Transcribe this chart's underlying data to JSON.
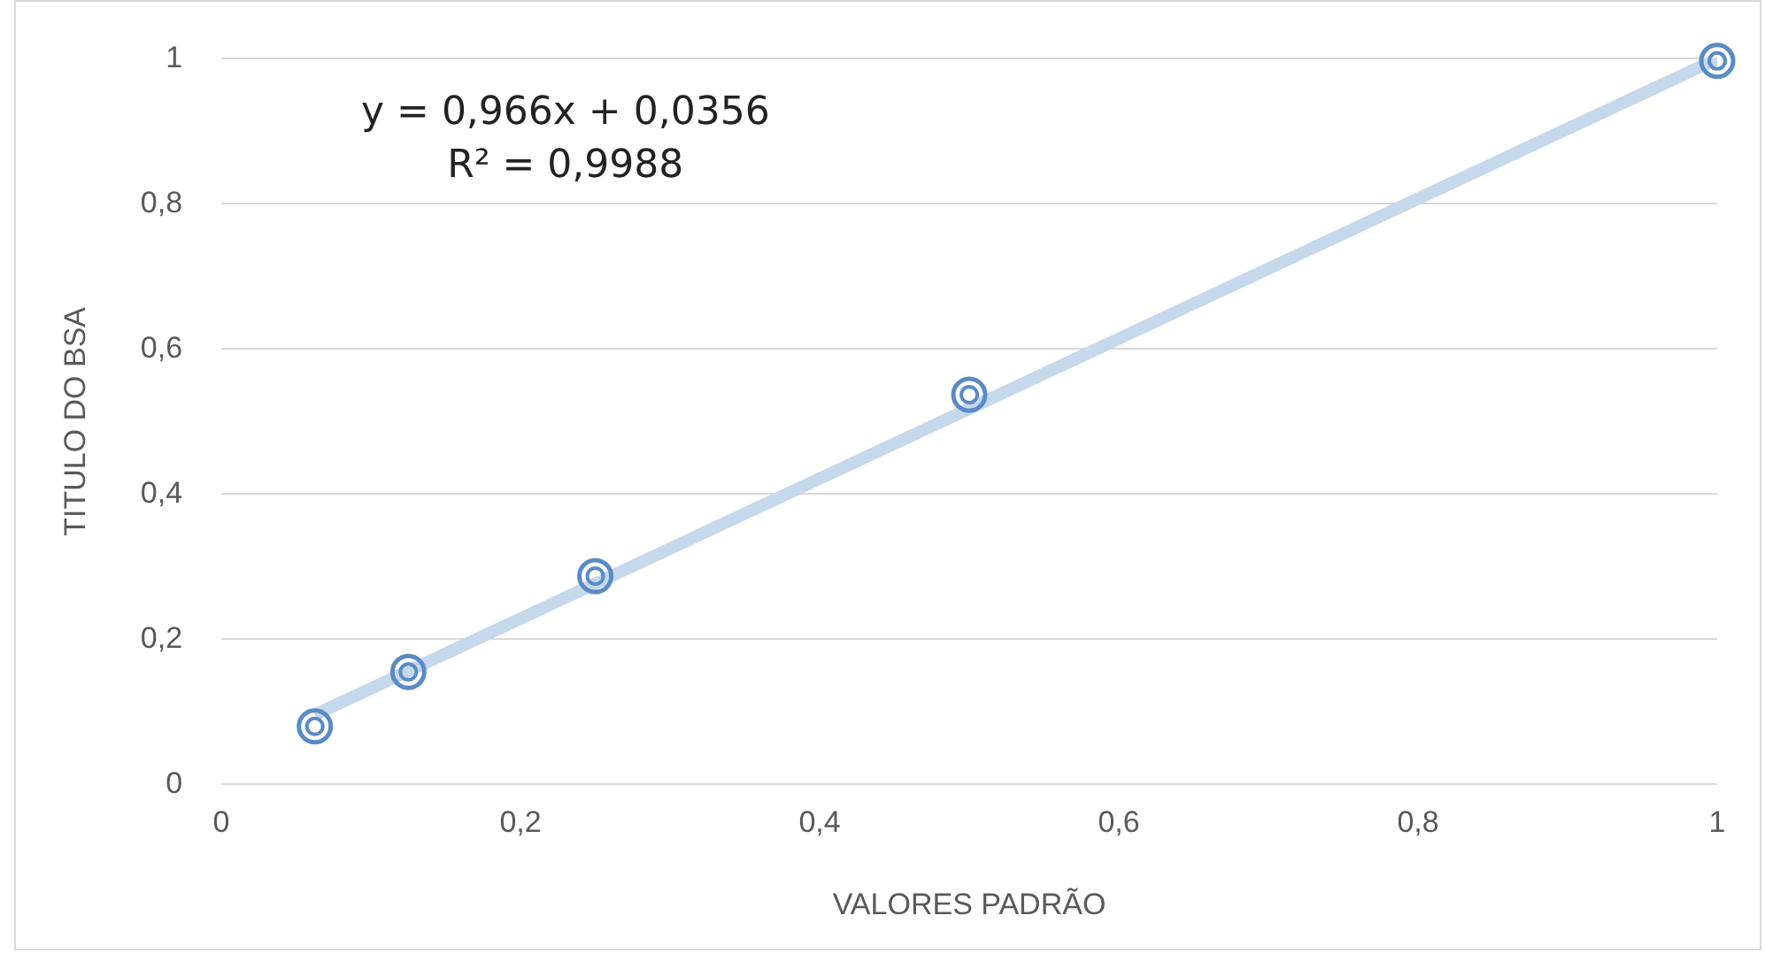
{
  "chart_data": {
    "type": "scatter",
    "xlabel": "VALORES PADRÃO",
    "ylabel": "TITULO DO BSA",
    "xlim": [
      0,
      1
    ],
    "ylim": [
      0,
      1
    ],
    "xticks": [
      0,
      {
        "value": 0.2,
        "label": "0,2"
      },
      {
        "value": 0.4,
        "label": "0,4"
      },
      {
        "value": 0.6,
        "label": "0,6"
      },
      {
        "value": 0.8,
        "label": "0,8"
      },
      1
    ],
    "yticks": [
      0,
      {
        "value": 0.2,
        "label": "0,2"
      },
      {
        "value": 0.4,
        "label": "0,4"
      },
      {
        "value": 0.6,
        "label": "0,6"
      },
      {
        "value": 0.8,
        "label": "0,8"
      },
      1
    ],
    "grid": "y",
    "legend": false,
    "marker": "circle",
    "series": [
      {
        "type": "line",
        "color": "#c5d8ec",
        "x": [
          0.0625,
          1
        ],
        "values": [
          0.096,
          1.0
        ]
      },
      {
        "color": "#5a8bc6",
        "x": [
          0.0625,
          0.125,
          0.25,
          0.5,
          1
        ],
        "values": [
          0.08,
          0.155,
          0.287,
          0.537,
          0.997
        ]
      }
    ],
    "annotations": [
      "y = 0,966x + 0,0356",
      "R² = 0,9988"
    ]
  }
}
